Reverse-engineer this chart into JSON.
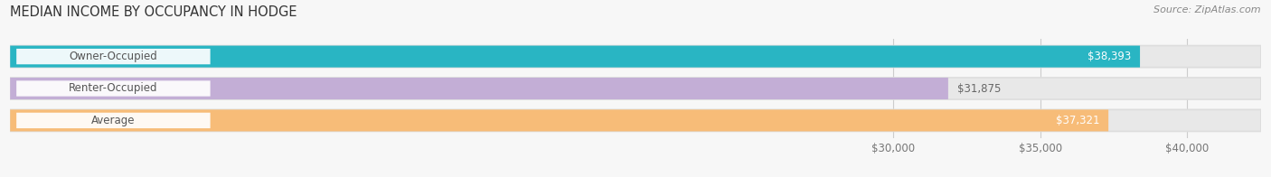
{
  "title": "MEDIAN INCOME BY OCCUPANCY IN HODGE",
  "source": "Source: ZipAtlas.com",
  "categories": [
    "Owner-Occupied",
    "Renter-Occupied",
    "Average"
  ],
  "values": [
    38393,
    31875,
    37321
  ],
  "bar_colors": [
    "#29b5c3",
    "#c3aed6",
    "#f7bc78"
  ],
  "bar_bg_color": "#e8e8e8",
  "value_labels": [
    "$38,393",
    "$31,875",
    "$37,321"
  ],
  "xlim_min": 0,
  "xlim_max": 42500,
  "xticks": [
    30000,
    35000,
    40000
  ],
  "xtick_labels": [
    "$30,000",
    "$35,000",
    "$40,000"
  ],
  "title_fontsize": 10.5,
  "label_fontsize": 8.5,
  "tick_fontsize": 8.5,
  "source_fontsize": 8,
  "bar_height": 0.68,
  "background_color": "#f7f7f7",
  "label_pill_color": "#ffffff",
  "label_text_color": "#555555",
  "value_text_color": "#ffffff",
  "renter_value_text_color": "#666666"
}
